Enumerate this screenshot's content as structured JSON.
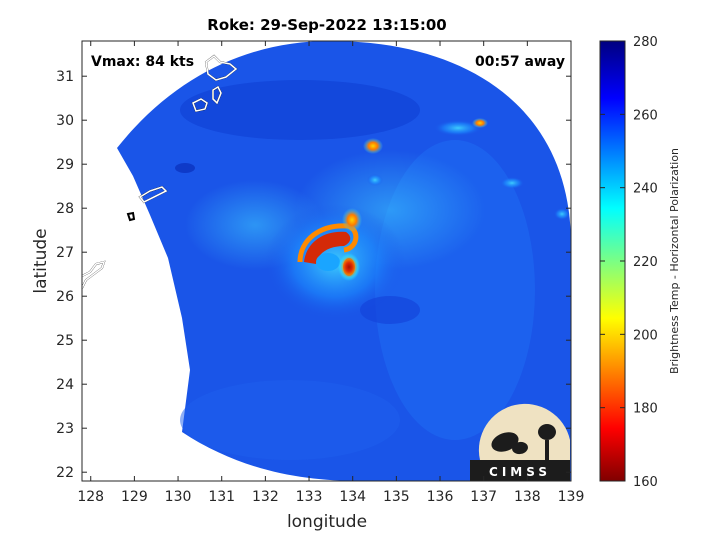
{
  "title": "Roke: 29-Sep-2022 13:15:00",
  "vmax_text": "Vmax: 84 kts",
  "time_away_text": "00:57 away",
  "x_axis": {
    "label": "longitude",
    "range": [
      127.8,
      139
    ],
    "ticks": [
      "128",
      "129",
      "130",
      "131",
      "132",
      "133",
      "134",
      "135",
      "136",
      "137",
      "138",
      "139"
    ]
  },
  "y_axis": {
    "label": "latitude",
    "range": [
      21.8,
      31.8
    ],
    "ticks": [
      "22",
      "23",
      "24",
      "25",
      "26",
      "27",
      "28",
      "29",
      "30",
      "31"
    ]
  },
  "colorbar": {
    "label": "Brightness Temp - Horizontal Polarization",
    "range": [
      160,
      280
    ],
    "ticks": [
      "160",
      "180",
      "200",
      "220",
      "240",
      "260",
      "280"
    ],
    "colormap": "jet"
  },
  "logo": {
    "text": "CIMSS"
  },
  "storm_center": {
    "lon": 133.5,
    "lat": 26.9
  },
  "colors": {
    "background_field": "#1a55e8",
    "eyewall_cold": "#c81e0a",
    "land_outline": "#ffffff"
  }
}
